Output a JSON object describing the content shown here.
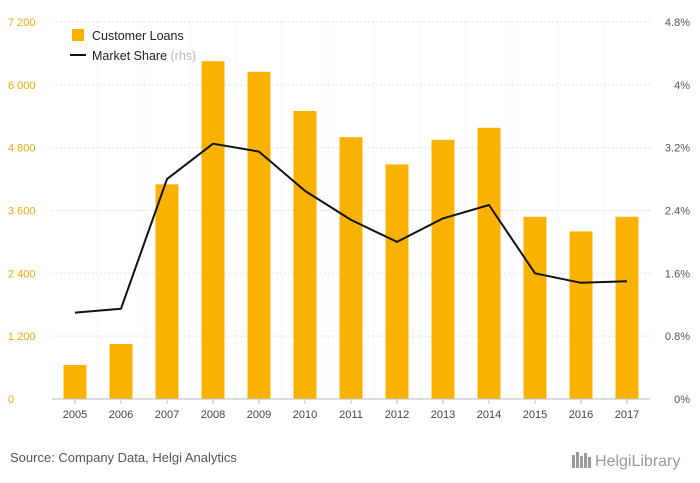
{
  "chart_data": {
    "type": "bar",
    "categories": [
      "2005",
      "2006",
      "2007",
      "2008",
      "2009",
      "2010",
      "2011",
      "2012",
      "2013",
      "2014",
      "2015",
      "2016",
      "2017"
    ],
    "series": [
      {
        "name": "Customer Loans",
        "type": "bar",
        "axis": "left",
        "color": "#f9b200",
        "values": [
          650,
          1050,
          4100,
          6450,
          6250,
          5500,
          5000,
          4480,
          4950,
          5180,
          3480,
          3200,
          3480
        ]
      },
      {
        "name": "Market Share",
        "name_suffix": "(rhs)",
        "type": "line",
        "axis": "right",
        "color": "#111111",
        "values": [
          1.1,
          1.15,
          2.8,
          3.25,
          3.15,
          2.65,
          2.28,
          2.0,
          2.3,
          2.47,
          1.6,
          1.48,
          1.5
        ]
      }
    ],
    "y_left": {
      "ylim": [
        0,
        7200
      ],
      "ticks": [
        0,
        1200,
        2400,
        3600,
        4800,
        6000,
        7200
      ],
      "tick_labels": [
        "0",
        "1 200",
        "2 400",
        "3 600",
        "4 800",
        "6 000",
        "7 200"
      ]
    },
    "y_right": {
      "ylim": [
        0,
        4.8
      ],
      "ticks": [
        0,
        0.8,
        1.6,
        2.4,
        3.2,
        4.0,
        4.8
      ],
      "tick_labels": [
        "0%",
        "0.8%",
        "1.6%",
        "2.4%",
        "3.2%",
        "4%",
        "4.8%"
      ]
    },
    "grid": true,
    "legend_position": "top-left"
  },
  "source_text": "Source: Company Data, Helgi Analytics",
  "logo_text": "HelgiLibrary"
}
